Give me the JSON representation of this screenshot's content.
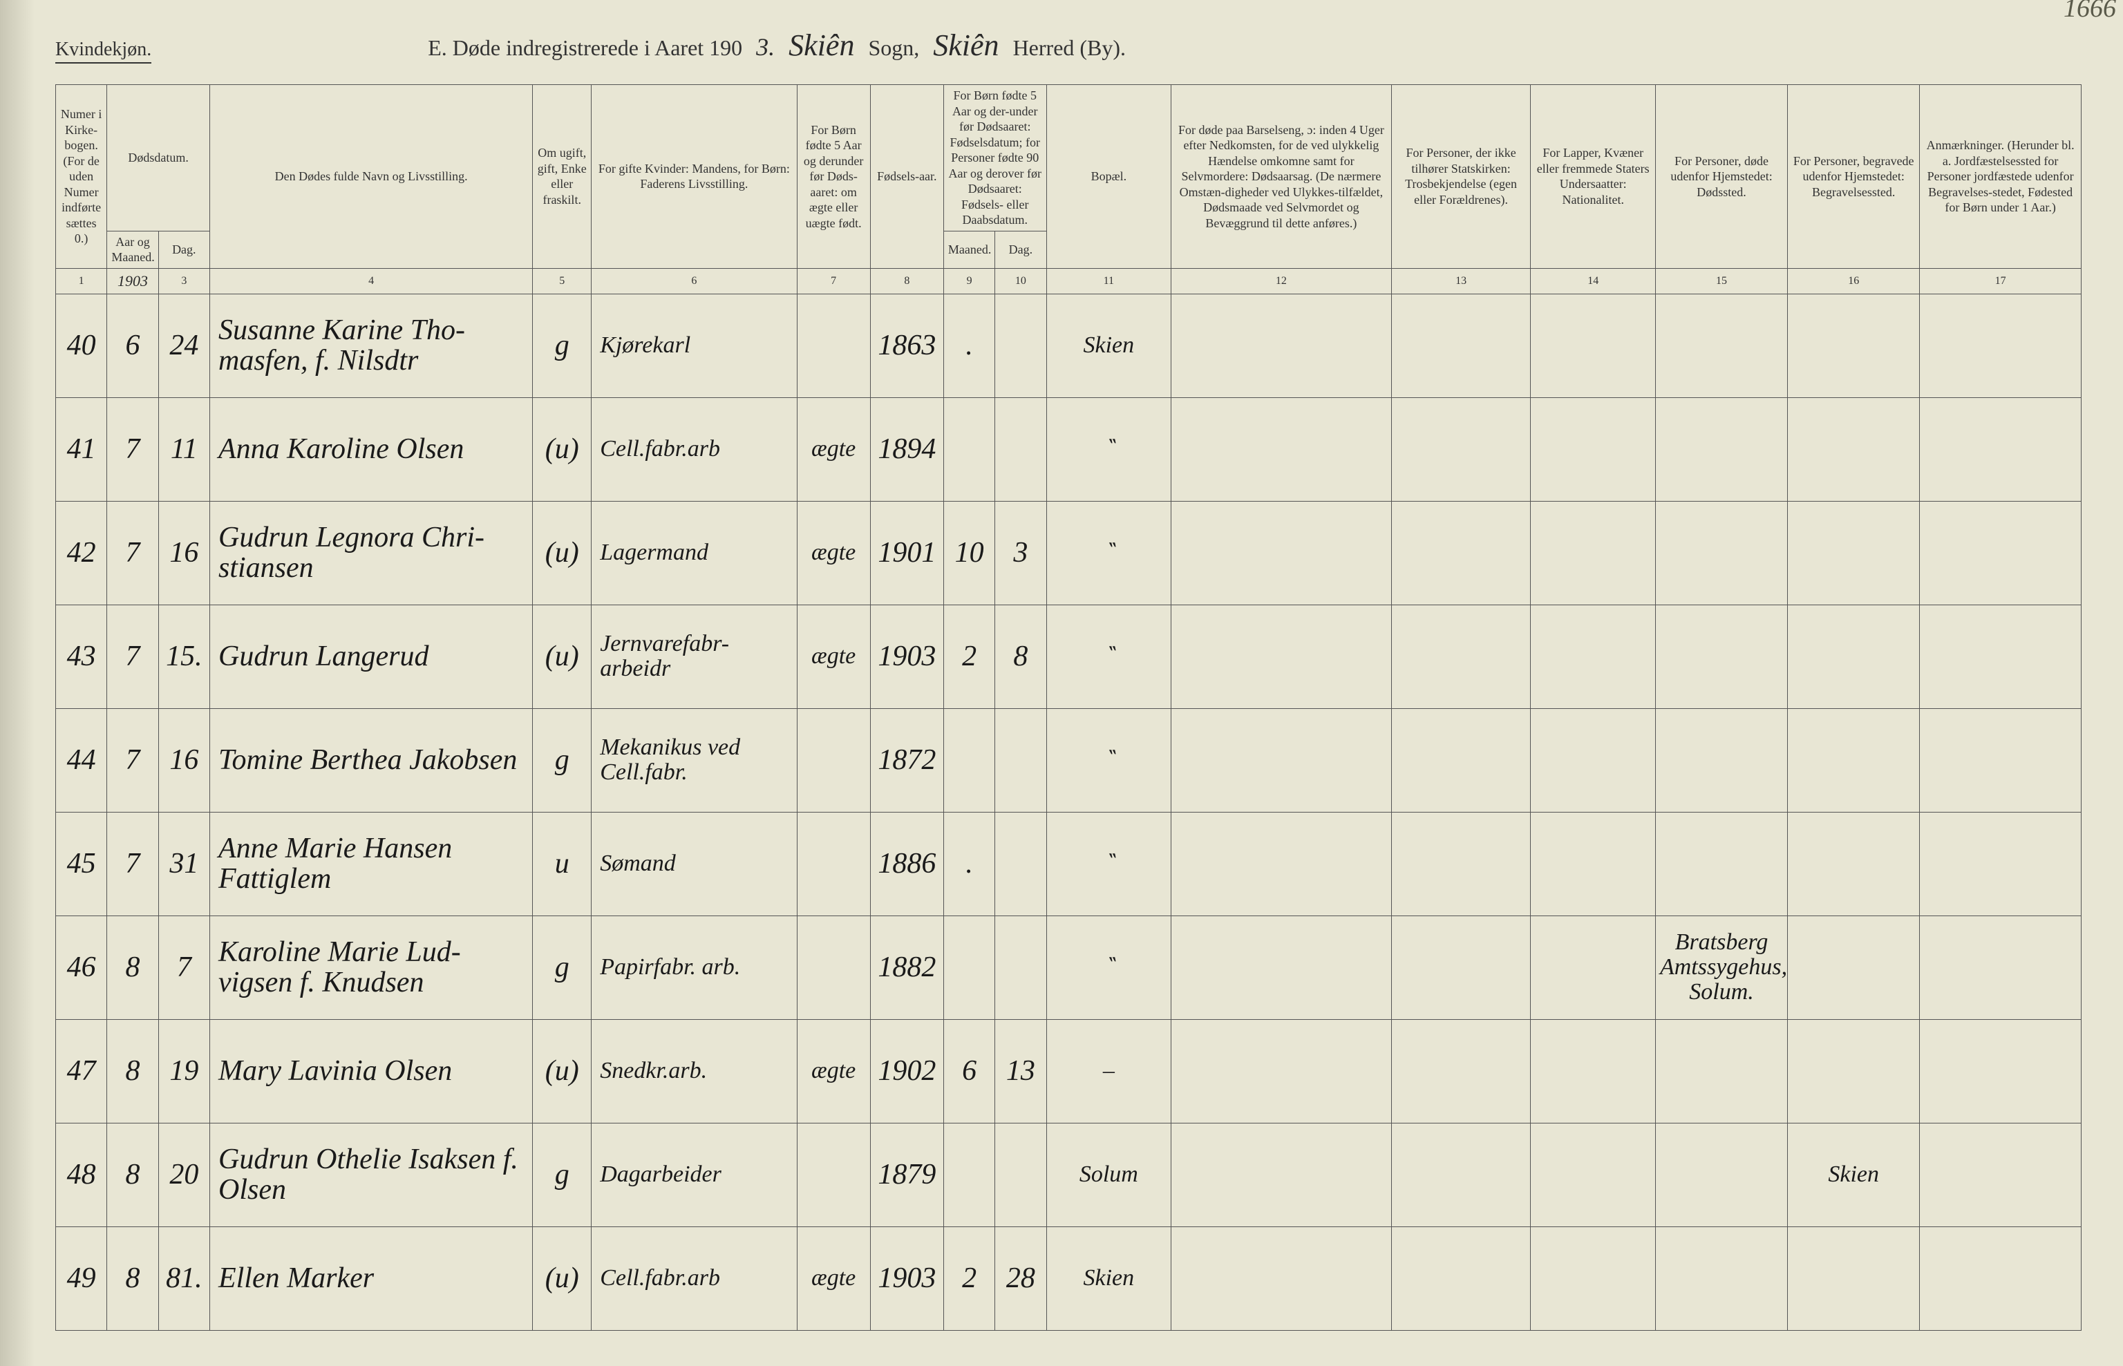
{
  "corner_label": "Kvindekjøn.",
  "title_prefix": "E.   Døde indregistrerede i Aaret 190",
  "year_suffix_hw": "3.",
  "sogn_hw": "Skiên",
  "sogn_label": "Sogn,",
  "herred_hw": "Skiên",
  "herred_label": "Herred (By).",
  "page_number_hw": "1666",
  "colors": {
    "paper": "#e8e6d4",
    "ink": "#1a1a1a",
    "rule": "#555555",
    "background": "#2a2a2a"
  },
  "headers": {
    "c1": "Numer i Kirke-bogen. (For de uden Numer indførte sættes 0.)",
    "c2_top": "Dødsdatum.",
    "c2": "Aar og Maaned.",
    "c3": "Dag.",
    "c4": "Den Dødes fulde Navn og Livsstilling.",
    "c5": "Om ugift, gift, Enke eller fraskilt.",
    "c6": "For gifte Kvinder: Mandens, for Børn: Faderens Livsstilling.",
    "c7": "For Børn fødte 5 Aar og derunder før Døds-aaret: om ægte eller uægte født.",
    "c8": "Fødsels-aar.",
    "c9_10_top": "For Børn fødte 5 Aar og der-under før Dødsaaret: Fødselsdatum; for Personer fødte 90 Aar og derover før Dødsaaret: Fødsels- eller Daabsdatum.",
    "c9": "Maaned.",
    "c10": "Dag.",
    "c11": "Bopæl.",
    "c12": "For døde paa Barselseng, ɔ: inden 4 Uger efter Nedkomsten, for de ved ulykkelig Hændelse omkomne samt for Selvmordere: Dødsaarsag. (De nærmere Omstæn-digheder ved Ulykkes-tilfældet, Dødsmaade ved Selvmordet og Bevæggrund til dette anføres.)",
    "c13": "For Personer, der ikke tilhører Statskirken: Trosbekjendelse (egen eller Forældrenes).",
    "c14": "For Lapper, Kvæner eller fremmede Staters Undersaatter: Nationalitet.",
    "c15": "For Personer, døde udenfor Hjemstedet: Dødssted.",
    "c16": "For Personer, begravede udenfor Hjemstedet: Begravelsessted.",
    "c17": "Anmærkninger. (Herunder bl. a. Jordfæstelsessted for Personer jordfæstede udenfor Begravelses-stedet, Fødested for Børn under 1 Aar.)"
  },
  "colnums": [
    "1",
    "1903",
    "3",
    "4",
    "5",
    "6",
    "7",
    "8",
    "9",
    "10",
    "11",
    "12",
    "13",
    "14",
    "15",
    "16",
    "17"
  ],
  "rows": [
    {
      "num": "40",
      "mon": "6",
      "day": "24",
      "name": "Susanne Karine Tho-masfen, f. Nilsdtr",
      "status": "g",
      "occ": "Kjørekarl",
      "legit": "",
      "byear": "1863",
      "bmon": ".",
      "bday": "",
      "bopel": "Skien",
      "c12": "",
      "c13": "",
      "c14": "",
      "c15": "",
      "c16": "",
      "c17": ""
    },
    {
      "num": "41",
      "mon": "7",
      "day": "11",
      "name": "Anna Karoline Olsen",
      "status": "(u)",
      "occ": "Cell.fabr.arb",
      "legit": "ægte",
      "byear": "1894",
      "bmon": "",
      "bday": "",
      "bopel": "‶",
      "c12": "",
      "c13": "",
      "c14": "",
      "c15": "",
      "c16": "",
      "c17": ""
    },
    {
      "num": "42",
      "mon": "7",
      "day": "16",
      "name": "Gudrun Legnora Chri-stiansen",
      "status": "(u)",
      "occ": "Lagermand",
      "legit": "ægte",
      "byear": "1901",
      "bmon": "10",
      "bday": "3",
      "bopel": "‶",
      "c12": "",
      "c13": "",
      "c14": "",
      "c15": "",
      "c16": "",
      "c17": ""
    },
    {
      "num": "43",
      "mon": "7",
      "day": "15.",
      "name": "Gudrun Langerud",
      "status": "(u)",
      "occ": "Jernvarefabr-arbeidr",
      "legit": "ægte",
      "byear": "1903",
      "bmon": "2",
      "bday": "8",
      "bopel": "‶",
      "c12": "",
      "c13": "",
      "c14": "",
      "c15": "",
      "c16": "",
      "c17": ""
    },
    {
      "num": "44",
      "mon": "7",
      "day": "16",
      "name": "Tomine Berthea Jakobsen",
      "status": "g",
      "occ": "Mekanikus ved Cell.fabr.",
      "legit": "",
      "byear": "1872",
      "bmon": "",
      "bday": "",
      "bopel": "‶",
      "c12": "",
      "c13": "",
      "c14": "",
      "c15": "",
      "c16": "",
      "c17": ""
    },
    {
      "num": "45",
      "mon": "7",
      "day": "31",
      "name": "Anne Marie Hansen Fattiglem",
      "status": "u",
      "occ": "Sømand",
      "legit": "",
      "byear": "1886",
      "bmon": ".",
      "bday": "",
      "bopel": "‶",
      "c12": "",
      "c13": "",
      "c14": "",
      "c15": "",
      "c16": "",
      "c17": ""
    },
    {
      "num": "46",
      "mon": "8",
      "day": "7",
      "name": "Karoline Marie Lud-vigsen f. Knudsen",
      "status": "g",
      "occ": "Papirfabr. arb.",
      "legit": "",
      "byear": "1882",
      "bmon": "",
      "bday": "",
      "bopel": "‶",
      "c12": "",
      "c13": "",
      "c14": "",
      "c15": "Bratsberg Amtssygehus, Solum.",
      "c16": "",
      "c17": ""
    },
    {
      "num": "47",
      "mon": "8",
      "day": "19",
      "name": "Mary Lavinia Olsen",
      "status": "(u)",
      "occ": "Snedkr.arb.",
      "legit": "ægte",
      "byear": "1902",
      "bmon": "6",
      "bday": "13",
      "bopel": "–",
      "c12": "",
      "c13": "",
      "c14": "",
      "c15": "",
      "c16": "",
      "c17": ""
    },
    {
      "num": "48",
      "mon": "8",
      "day": "20",
      "name": "Gudrun Othelie Isaksen f. Olsen",
      "status": "g",
      "occ": "Dagarbeider",
      "legit": "",
      "byear": "1879",
      "bmon": "",
      "bday": "",
      "bopel": "Solum",
      "c12": "",
      "c13": "",
      "c14": "",
      "c15": "",
      "c16": "Skien",
      "c17": ""
    },
    {
      "num": "49",
      "mon": "8",
      "day": "81.",
      "name": "Ellen Marker",
      "status": "(u)",
      "occ": "Cell.fabr.arb",
      "legit": "ægte",
      "byear": "1903",
      "bmon": "2",
      "bday": "28",
      "bopel": "Skien",
      "c12": "",
      "c13": "",
      "c14": "",
      "c15": "",
      "c16": "",
      "c17": ""
    }
  ]
}
